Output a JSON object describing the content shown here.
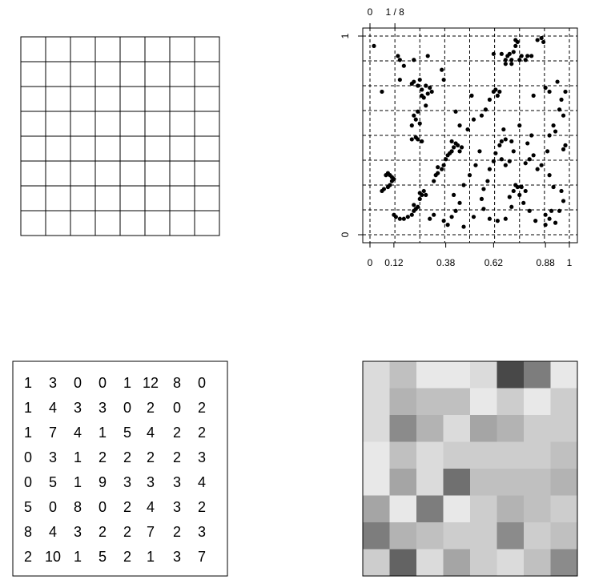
{
  "chart_data": [
    {
      "type": "table",
      "panel": "empty-grid",
      "nrows": 8,
      "ncols": 8
    },
    {
      "type": "scatter",
      "panel": "point-scatter-with-grid",
      "xlim": [
        0,
        1
      ],
      "ylim": [
        0,
        1
      ],
      "x_ticks": [
        0,
        0.12,
        0.38,
        0.62,
        0.88,
        1
      ],
      "x_tick_labels": [
        "0",
        "0.12",
        "0.38",
        "0.62",
        "0.88",
        "1"
      ],
      "top_tick_labels": [
        "0",
        "1 / 8"
      ],
      "top_tick_positions": [
        0,
        0.125
      ],
      "y_tick_labels": [
        "0",
        "1"
      ],
      "grid": "dashed lines every 1/8",
      "points": [
        [
          0.07,
          0.23
        ],
        [
          0.06,
          0.22
        ],
        [
          0.09,
          0.24
        ],
        [
          0.1,
          0.25
        ],
        [
          0.11,
          0.27
        ],
        [
          0.12,
          0.28
        ],
        [
          0.08,
          0.3
        ],
        [
          0.09,
          0.31
        ],
        [
          0.1,
          0.3
        ],
        [
          0.11,
          0.29
        ],
        [
          0.13,
          0.09
        ],
        [
          0.15,
          0.08
        ],
        [
          0.17,
          0.08
        ],
        [
          0.19,
          0.09
        ],
        [
          0.12,
          0.1
        ],
        [
          0.21,
          0.1
        ],
        [
          0.22,
          0.12
        ],
        [
          0.23,
          0.13
        ],
        [
          0.24,
          0.14
        ],
        [
          0.22,
          0.15
        ],
        [
          0.25,
          0.18
        ],
        [
          0.26,
          0.2
        ],
        [
          0.27,
          0.22
        ],
        [
          0.25,
          0.21
        ],
        [
          0.28,
          0.2
        ],
        [
          0.15,
          0.88
        ],
        [
          0.14,
          0.9
        ],
        [
          0.17,
          0.85
        ],
        [
          0.22,
          0.88
        ],
        [
          0.29,
          0.9
        ],
        [
          0.02,
          0.95
        ],
        [
          0.06,
          0.72
        ],
        [
          0.15,
          0.78
        ],
        [
          0.21,
          0.76
        ],
        [
          0.22,
          0.77
        ],
        [
          0.24,
          0.75
        ],
        [
          0.26,
          0.73
        ],
        [
          0.25,
          0.78
        ],
        [
          0.28,
          0.75
        ],
        [
          0.3,
          0.74
        ],
        [
          0.31,
          0.72
        ],
        [
          0.29,
          0.71
        ],
        [
          0.27,
          0.69
        ],
        [
          0.26,
          0.7
        ],
        [
          0.28,
          0.65
        ],
        [
          0.24,
          0.62
        ],
        [
          0.23,
          0.58
        ],
        [
          0.21,
          0.55
        ],
        [
          0.22,
          0.6
        ],
        [
          0.25,
          0.56
        ],
        [
          0.36,
          0.83
        ],
        [
          0.37,
          0.78
        ],
        [
          0.43,
          0.62
        ],
        [
          0.45,
          0.55
        ],
        [
          0.49,
          0.53
        ],
        [
          0.52,
          0.58
        ],
        [
          0.56,
          0.6
        ],
        [
          0.58,
          0.63
        ],
        [
          0.6,
          0.68
        ],
        [
          0.62,
          0.72
        ],
        [
          0.63,
          0.73
        ],
        [
          0.65,
          0.72
        ],
        [
          0.64,
          0.7
        ],
        [
          0.51,
          0.7
        ],
        [
          0.68,
          0.88
        ],
        [
          0.69,
          0.9
        ],
        [
          0.7,
          0.91
        ],
        [
          0.71,
          0.88
        ],
        [
          0.72,
          0.92
        ],
        [
          0.73,
          0.95
        ],
        [
          0.74,
          0.97
        ],
        [
          0.73,
          0.98
        ],
        [
          0.75,
          0.88
        ],
        [
          0.76,
          0.9
        ],
        [
          0.78,
          0.88
        ],
        [
          0.79,
          0.9
        ],
        [
          0.81,
          0.9
        ],
        [
          0.84,
          0.98
        ],
        [
          0.86,
          0.99
        ],
        [
          0.87,
          0.97
        ],
        [
          0.62,
          0.91
        ],
        [
          0.66,
          0.91
        ],
        [
          0.68,
          0.86
        ],
        [
          0.71,
          0.86
        ],
        [
          0.82,
          0.7
        ],
        [
          0.88,
          0.74
        ],
        [
          0.9,
          0.72
        ],
        [
          0.94,
          0.77
        ],
        [
          0.96,
          0.68
        ],
        [
          0.98,
          0.72
        ],
        [
          0.95,
          0.63
        ],
        [
          0.97,
          0.6
        ],
        [
          0.92,
          0.55
        ],
        [
          0.9,
          0.5
        ],
        [
          0.93,
          0.52
        ],
        [
          0.98,
          0.45
        ],
        [
          0.97,
          0.43
        ],
        [
          0.89,
          0.42
        ],
        [
          0.86,
          0.35
        ],
        [
          0.84,
          0.33
        ],
        [
          0.9,
          0.3
        ],
        [
          0.92,
          0.24
        ],
        [
          0.96,
          0.22
        ],
        [
          0.97,
          0.17
        ],
        [
          0.95,
          0.12
        ],
        [
          0.91,
          0.12
        ],
        [
          0.88,
          0.1
        ],
        [
          0.9,
          0.08
        ],
        [
          0.93,
          0.06
        ],
        [
          0.88,
          0.05
        ],
        [
          0.83,
          0.07
        ],
        [
          0.8,
          0.12
        ],
        [
          0.77,
          0.16
        ],
        [
          0.78,
          0.22
        ],
        [
          0.76,
          0.24
        ],
        [
          0.75,
          0.2
        ],
        [
          0.74,
          0.24
        ],
        [
          0.73,
          0.25
        ],
        [
          0.72,
          0.22
        ],
        [
          0.7,
          0.19
        ],
        [
          0.71,
          0.14
        ],
        [
          0.68,
          0.08
        ],
        [
          0.64,
          0.07
        ],
        [
          0.6,
          0.08
        ],
        [
          0.57,
          0.13
        ],
        [
          0.56,
          0.18
        ],
        [
          0.57,
          0.23
        ],
        [
          0.59,
          0.27
        ],
        [
          0.6,
          0.33
        ],
        [
          0.62,
          0.37
        ],
        [
          0.63,
          0.41
        ],
        [
          0.65,
          0.45
        ],
        [
          0.66,
          0.47
        ],
        [
          0.68,
          0.48
        ],
        [
          0.71,
          0.47
        ],
        [
          0.72,
          0.42
        ],
        [
          0.7,
          0.37
        ],
        [
          0.68,
          0.35
        ],
        [
          0.66,
          0.38
        ],
        [
          0.78,
          0.36
        ],
        [
          0.8,
          0.38
        ],
        [
          0.82,
          0.4
        ],
        [
          0.79,
          0.46
        ],
        [
          0.81,
          0.5
        ],
        [
          0.75,
          0.55
        ],
        [
          0.67,
          0.53
        ],
        [
          0.55,
          0.42
        ],
        [
          0.53,
          0.35
        ],
        [
          0.5,
          0.3
        ],
        [
          0.47,
          0.25
        ],
        [
          0.42,
          0.2
        ],
        [
          0.45,
          0.16
        ],
        [
          0.43,
          0.12
        ],
        [
          0.41,
          0.09
        ],
        [
          0.37,
          0.07
        ],
        [
          0.3,
          0.08
        ],
        [
          0.32,
          0.1
        ],
        [
          0.39,
          0.05
        ],
        [
          0.47,
          0.04
        ],
        [
          0.52,
          0.09
        ],
        [
          0.32,
          0.27
        ],
        [
          0.33,
          0.3
        ],
        [
          0.34,
          0.31
        ],
        [
          0.36,
          0.33
        ],
        [
          0.37,
          0.35
        ],
        [
          0.38,
          0.38
        ],
        [
          0.39,
          0.4
        ],
        [
          0.41,
          0.42
        ],
        [
          0.42,
          0.44
        ],
        [
          0.43,
          0.46
        ],
        [
          0.44,
          0.45
        ],
        [
          0.45,
          0.42
        ],
        [
          0.46,
          0.44
        ],
        [
          0.41,
          0.47
        ],
        [
          0.4,
          0.41
        ],
        [
          0.34,
          0.34
        ],
        [
          0.26,
          0.47
        ],
        [
          0.24,
          0.48
        ],
        [
          0.23,
          0.49
        ],
        [
          0.21,
          0.48
        ]
      ]
    },
    {
      "type": "table",
      "panel": "count-table",
      "rows": [
        [
          1,
          3,
          0,
          0,
          1,
          12,
          8,
          0
        ],
        [
          1,
          4,
          3,
          3,
          0,
          2,
          0,
          2
        ],
        [
          1,
          7,
          4,
          1,
          5,
          4,
          2,
          2
        ],
        [
          0,
          3,
          1,
          2,
          2,
          2,
          2,
          3
        ],
        [
          0,
          5,
          1,
          9,
          3,
          3,
          3,
          4
        ],
        [
          5,
          0,
          8,
          0,
          2,
          4,
          3,
          2
        ],
        [
          8,
          4,
          3,
          2,
          2,
          7,
          2,
          3
        ],
        [
          2,
          10,
          1,
          5,
          2,
          1,
          3,
          7
        ]
      ]
    },
    {
      "type": "heatmap",
      "panel": "count-heatmap",
      "rows": [
        [
          1,
          3,
          0,
          0,
          1,
          12,
          8,
          0
        ],
        [
          1,
          4,
          3,
          3,
          0,
          2,
          0,
          2
        ],
        [
          1,
          7,
          4,
          1,
          5,
          4,
          2,
          2
        ],
        [
          0,
          3,
          1,
          2,
          2,
          2,
          2,
          3
        ],
        [
          0,
          5,
          1,
          9,
          3,
          3,
          3,
          4
        ],
        [
          5,
          0,
          8,
          0,
          2,
          4,
          3,
          2
        ],
        [
          8,
          4,
          3,
          2,
          2,
          7,
          2,
          3
        ],
        [
          2,
          10,
          1,
          5,
          2,
          1,
          3,
          7
        ]
      ],
      "colormap": "grayscale, higher count = darker",
      "max_value": 12
    }
  ]
}
